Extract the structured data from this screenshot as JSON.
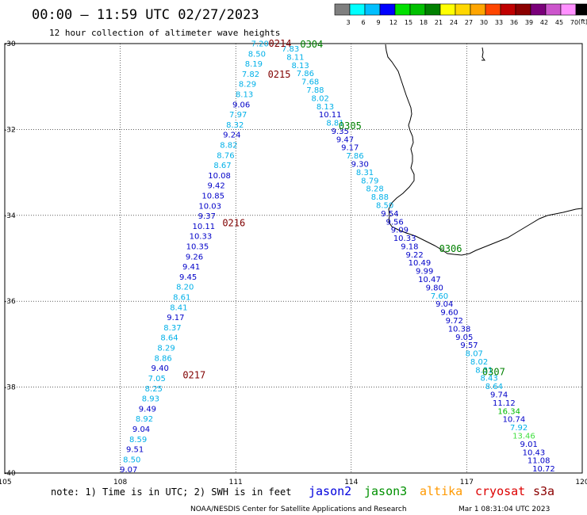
{
  "header": {
    "title": "00:00 – 11:59 UTC 02/27/2023",
    "subtitle": "12 hour collection of altimeter wave heights"
  },
  "legend": {
    "labels": [
      "3",
      "6",
      "9",
      "12",
      "15",
      "18",
      "21",
      "24",
      "27",
      "30",
      "33",
      "36",
      "39",
      "42",
      "45",
      "70"
    ],
    "unit": "(ft)",
    "colors": [
      "#7f7f7f",
      "#00ffff",
      "#00bfff",
      "#0000ff",
      "#00e000",
      "#00c000",
      "#008000",
      "#ffff00",
      "#ffd700",
      "#ffa500",
      "#ff4500",
      "#c00000",
      "#8b0000",
      "#7a007a",
      "#cc55cc",
      "#ff90ff",
      "#000000"
    ]
  },
  "map": {
    "lon_range": [
      105,
      120
    ],
    "lat_range": [
      -40,
      -30
    ],
    "lon_labels": [
      {
        "lon": 105,
        "text": "105"
      },
      {
        "lon": 108,
        "text": "108"
      },
      {
        "lon": 111,
        "text": "111"
      },
      {
        "lon": 114,
        "text": "114"
      },
      {
        "lon": 117,
        "text": "117"
      },
      {
        "lon": 120,
        "text": "120"
      }
    ],
    "lat_labels": [
      {
        "lat": -30,
        "text": "-30"
      },
      {
        "lat": -32,
        "text": "-32"
      },
      {
        "lat": -34,
        "text": "-34"
      },
      {
        "lat": -36,
        "text": "-36"
      },
      {
        "lat": -38,
        "text": "-38"
      },
      {
        "lat": -40,
        "text": "-40"
      }
    ]
  },
  "colors": {
    "light": "#00b0e8",
    "dark": "#0000c8",
    "green_light": "#40e040",
    "green_mid": "#00bb00",
    "time_jason3": "#008000",
    "time_cryosat": "#800000"
  },
  "times": [
    {
      "text": "0214",
      "lon": 112.15,
      "lat": -30.0,
      "c": "time_cryosat"
    },
    {
      "text": "0304",
      "lon": 112.97,
      "lat": -30.02,
      "c": "time_jason3"
    },
    {
      "text": "0215",
      "lon": 112.13,
      "lat": -30.72,
      "c": "time_cryosat"
    },
    {
      "text": "0305",
      "lon": 113.97,
      "lat": -31.92,
      "c": "time_jason3"
    },
    {
      "text": "0216",
      "lon": 110.95,
      "lat": -34.18,
      "c": "time_cryosat"
    },
    {
      "text": "0306",
      "lon": 116.58,
      "lat": -34.78,
      "c": "time_jason3"
    },
    {
      "text": "0217",
      "lon": 109.92,
      "lat": -37.72,
      "c": "time_cryosat"
    },
    {
      "text": "0307",
      "lon": 117.7,
      "lat": -37.65,
      "c": "time_jason3"
    }
  ],
  "tracks": [
    {
      "name": "west",
      "start": [
        111.63,
        -30.0
      ],
      "end": [
        108.22,
        -39.92
      ],
      "values": [
        [
          "7.20",
          "light"
        ],
        [
          "8.50",
          "light"
        ],
        [
          "8.19",
          "light"
        ],
        [
          "7.82",
          "light"
        ],
        [
          "8.29",
          "light"
        ],
        [
          "8.13",
          "light"
        ],
        [
          "9.06",
          "dark"
        ],
        [
          "7.97",
          "light"
        ],
        [
          "8.32",
          "light"
        ],
        [
          "9.24",
          "dark"
        ],
        [
          "8.82",
          "light"
        ],
        [
          "8.76",
          "light"
        ],
        [
          "8.67",
          "light"
        ],
        [
          "10.08",
          "dark"
        ],
        [
          "9.42",
          "dark"
        ],
        [
          "10.85",
          "dark"
        ],
        [
          "10.03",
          "dark"
        ],
        [
          "9.37",
          "dark"
        ],
        [
          "10.11",
          "dark"
        ],
        [
          "10.33",
          "dark"
        ],
        [
          "10.35",
          "dark"
        ],
        [
          "9.26",
          "dark"
        ],
        [
          "9.41",
          "dark"
        ],
        [
          "9.45",
          "dark"
        ],
        [
          "8.20",
          "light"
        ],
        [
          "8.61",
          "light"
        ],
        [
          "8.41",
          "light"
        ],
        [
          "9.17",
          "dark"
        ],
        [
          "8.37",
          "light"
        ],
        [
          "8.64",
          "light"
        ],
        [
          "8.29",
          "light"
        ],
        [
          "8.86",
          "light"
        ],
        [
          "9.40",
          "dark"
        ],
        [
          "7.05",
          "light"
        ],
        [
          "8.25",
          "light"
        ],
        [
          "8.93",
          "light"
        ],
        [
          "9.49",
          "dark"
        ],
        [
          "8.92",
          "light"
        ],
        [
          "9.04",
          "dark"
        ],
        [
          "8.59",
          "light"
        ],
        [
          "9.51",
          "dark"
        ],
        [
          "8.50",
          "light"
        ],
        [
          "9.07",
          "dark"
        ]
      ]
    },
    {
      "name": "east",
      "start": [
        112.42,
        -30.12
      ],
      "end": [
        119.0,
        -39.9
      ],
      "values": [
        [
          "7.83",
          "light"
        ],
        [
          "8.11",
          "light"
        ],
        [
          "8.13",
          "light"
        ],
        [
          "7.86",
          "light"
        ],
        [
          "7.68",
          "light"
        ],
        [
          "7.88",
          "light"
        ],
        [
          "8.02",
          "light"
        ],
        [
          "8.13",
          "light"
        ],
        [
          "10.11",
          "dark"
        ],
        [
          "8.81",
          "light"
        ],
        [
          "9.35",
          "dark"
        ],
        [
          "9.47",
          "dark"
        ],
        [
          "9.17",
          "dark"
        ],
        [
          "7.86",
          "light"
        ],
        [
          "9.30",
          "dark"
        ],
        [
          "8.31",
          "light"
        ],
        [
          "8.79",
          "light"
        ],
        [
          "8.28",
          "light"
        ],
        [
          "8.88",
          "light"
        ],
        [
          "8.50",
          "light"
        ],
        [
          "9.54",
          "dark"
        ],
        [
          "9.56",
          "dark"
        ],
        [
          "9.09",
          "dark"
        ],
        [
          "10.33",
          "dark"
        ],
        [
          "9.18",
          "dark"
        ],
        [
          "9.22",
          "dark"
        ],
        [
          "10.49",
          "dark"
        ],
        [
          "9.99",
          "dark"
        ],
        [
          "10.47",
          "dark"
        ],
        [
          "9.80",
          "dark"
        ],
        [
          "7.60",
          "light"
        ],
        [
          "9.04",
          "dark"
        ],
        [
          "9.60",
          "dark"
        ],
        [
          "9.72",
          "dark"
        ],
        [
          "10.38",
          "dark"
        ],
        [
          "9.05",
          "dark"
        ],
        [
          "9.57",
          "dark"
        ],
        [
          "8.07",
          "light"
        ],
        [
          "8.02",
          "light"
        ],
        [
          "8.31",
          "light"
        ],
        [
          "8.43",
          "light"
        ],
        [
          "8.64",
          "light"
        ],
        [
          "9.74",
          "dark"
        ],
        [
          "11.12",
          "dark"
        ],
        [
          "16.34",
          "green_mid"
        ],
        [
          "10.74",
          "dark"
        ],
        [
          "7.92",
          "light"
        ],
        [
          "13.46",
          "green_light"
        ],
        [
          "9.01",
          "dark"
        ],
        [
          "10.43",
          "dark"
        ],
        [
          "11.08",
          "dark"
        ],
        [
          "10.72",
          "dark"
        ]
      ]
    }
  ],
  "footer": {
    "note": "note: 1) Time is in UTC; 2) SWH is in feet",
    "satellites": [
      {
        "name": "jason2",
        "color": "#0000dd"
      },
      {
        "name": "jason3",
        "color": "#009000"
      },
      {
        "name": "altika",
        "color": "#ff9900"
      },
      {
        "name": "cryosat",
        "color": "#dd0000"
      },
      {
        "name": "s3a",
        "color": "#8b0000"
      }
    ],
    "credit": "NOAA/NESDIS Center for Satellite Applications and Research",
    "timestamp": "Mar  1 08:31:04 UTC 2023"
  }
}
